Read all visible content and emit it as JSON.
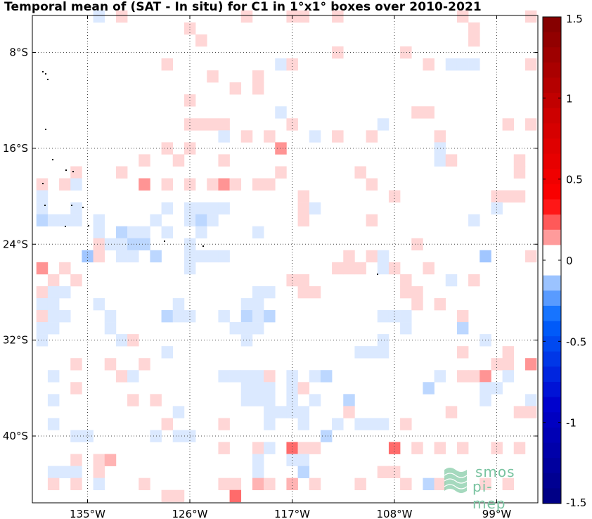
{
  "title": "Temporal mean of (SAT - In situ) for C1 in 1°x1° boxes over 2010-2021",
  "chart_data": {
    "type": "heatmap",
    "title": "Temporal mean of (SAT - In situ) for C1 in 1°x1° boxes over 2010-2021",
    "x_range": [
      -140,
      -95
    ],
    "y_range": [
      -46,
      -4
    ],
    "x_ticks": [
      {
        "value": -135,
        "label": "135°W"
      },
      {
        "value": -126,
        "label": "126°W"
      },
      {
        "value": -117,
        "label": "117°W"
      },
      {
        "value": -108,
        "label": "108°W"
      },
      {
        "value": -99,
        "label": "99°W"
      }
    ],
    "y_ticks": [
      {
        "value": -8,
        "label": "8°S"
      },
      {
        "value": -16,
        "label": "16°S"
      },
      {
        "value": -24,
        "label": "24°S"
      },
      {
        "value": -32,
        "label": "32°S"
      },
      {
        "value": -40,
        "label": "40°S"
      }
    ],
    "grid": true,
    "colorbar": {
      "range": [
        -1.5,
        1.5
      ],
      "levels": 32,
      "ticks": [
        {
          "value": 1.5,
          "label": "1.5"
        },
        {
          "value": 1,
          "label": "1"
        },
        {
          "value": 0.5,
          "label": "0.5"
        },
        {
          "value": 0,
          "label": "0"
        },
        {
          "value": -0.5,
          "label": "-0.5"
        },
        {
          "value": -1,
          "label": "-1"
        },
        {
          "value": -1.5,
          "label": "-1.5"
        }
      ],
      "colors_low_to_high": [
        "#000080",
        "#0000cc",
        "#0066ff",
        "#ffffff",
        "#ff0000",
        "#cc0000",
        "#800000"
      ]
    },
    "cells": [
      [
        -134,
        -5,
        -0.1
      ],
      [
        -132,
        -5,
        0.1
      ],
      [
        -121,
        -5,
        0.1
      ],
      [
        -113,
        -5,
        0.1
      ],
      [
        -116,
        -5,
        0.1
      ],
      [
        -102,
        -5,
        0.1
      ],
      [
        -96,
        -5,
        0.1
      ],
      [
        -117,
        -5,
        0.1
      ],
      [
        -126,
        -6,
        0.1
      ],
      [
        -101,
        -6,
        0.1
      ],
      [
        -125,
        -7,
        0.1
      ],
      [
        -101,
        -7,
        0.1
      ],
      [
        -107,
        -8,
        0.1
      ],
      [
        -113,
        -8,
        0.1
      ],
      [
        -128,
        -9,
        0.1
      ],
      [
        -118,
        -9,
        -0.1
      ],
      [
        -117,
        -9,
        0.1
      ],
      [
        -105,
        -9,
        0.1
      ],
      [
        -103,
        -9,
        -0.1
      ],
      [
        -102,
        -9,
        -0.1
      ],
      [
        -101,
        -9,
        -0.1
      ],
      [
        -96,
        -9,
        0.1
      ],
      [
        -124,
        -10,
        0.1
      ],
      [
        -120,
        -10,
        0.1
      ],
      [
        -122,
        -11,
        0.1
      ],
      [
        -120,
        -11,
        0.1
      ],
      [
        -126,
        -12,
        0.1
      ],
      [
        -118,
        -13,
        -0.1
      ],
      [
        -106,
        -13,
        0.1
      ],
      [
        -105,
        -13,
        0.1
      ],
      [
        -126,
        -14,
        0.1
      ],
      [
        -125,
        -14,
        0.1
      ],
      [
        -124,
        -14,
        0.1
      ],
      [
        -123,
        -14,
        0.1
      ],
      [
        -117,
        -14,
        0.1
      ],
      [
        -109,
        -14,
        -0.1
      ],
      [
        -98,
        -14,
        0.1
      ],
      [
        -96,
        -14,
        0.1
      ],
      [
        -123,
        -15,
        -0.1
      ],
      [
        -121,
        -15,
        0.1
      ],
      [
        -119,
        -15,
        0.1
      ],
      [
        -115,
        -15,
        -0.1
      ],
      [
        -113,
        -15,
        0.1
      ],
      [
        -110,
        -15,
        0.1
      ],
      [
        -104,
        -15,
        0.1
      ],
      [
        -128,
        -16,
        0.1
      ],
      [
        -126,
        -16,
        0.1
      ],
      [
        -118,
        -16,
        0.3
      ],
      [
        -104,
        -16,
        -0.1
      ],
      [
        -130,
        -17,
        0.1
      ],
      [
        -127,
        -17,
        0.1
      ],
      [
        -123,
        -17,
        0.1
      ],
      [
        -104,
        -17,
        -0.1
      ],
      [
        -103,
        -17,
        0.1
      ],
      [
        -97,
        -17,
        0.1
      ],
      [
        -136,
        -18,
        0.1
      ],
      [
        -132,
        -18,
        0.1
      ],
      [
        -118,
        -18,
        0.1
      ],
      [
        -111,
        -18,
        0.1
      ],
      [
        -97,
        -18,
        0.1
      ],
      [
        -139,
        -19,
        0.1
      ],
      [
        -137,
        -19,
        0.1
      ],
      [
        -136,
        -19,
        -0.1
      ],
      [
        -130,
        -19,
        0.3
      ],
      [
        -128,
        -19,
        0.1
      ],
      [
        -126,
        -19,
        0.1
      ],
      [
        -124,
        -19,
        0.1
      ],
      [
        -123,
        -19,
        0.3
      ],
      [
        -122,
        -19,
        0.1
      ],
      [
        -120,
        -19,
        0.1
      ],
      [
        -119,
        -19,
        0.1
      ],
      [
        -110,
        -19,
        0.1
      ],
      [
        -139,
        -20,
        -0.1
      ],
      [
        -116,
        -20,
        0.1
      ],
      [
        -108,
        -20,
        0.1
      ],
      [
        -99,
        -20,
        0.1
      ],
      [
        -98,
        -20,
        0.1
      ],
      [
        -97,
        -20,
        0.1
      ],
      [
        -139,
        -21,
        -0.1
      ],
      [
        -136,
        -21,
        -0.1
      ],
      [
        -128,
        -21,
        -0.1
      ],
      [
        -126,
        -21,
        -0.1
      ],
      [
        -125,
        -21,
        -0.1
      ],
      [
        -124,
        -21,
        -0.1
      ],
      [
        -123,
        -21,
        -0.1
      ],
      [
        -116,
        -21,
        0.1
      ],
      [
        -115,
        -21,
        -0.1
      ],
      [
        -99,
        -21,
        -0.1
      ],
      [
        -139,
        -22,
        -0.2
      ],
      [
        -138,
        -22,
        -0.1
      ],
      [
        -137,
        -22,
        -0.1
      ],
      [
        -136,
        -22,
        -0.1
      ],
      [
        -134,
        -22,
        -0.1
      ],
      [
        -129,
        -22,
        -0.1
      ],
      [
        -126,
        -22,
        -0.1
      ],
      [
        -125,
        -22,
        -0.2
      ],
      [
        -124,
        -22,
        -0.1
      ],
      [
        -116,
        -22,
        0.1
      ],
      [
        -110,
        -22,
        0.1
      ],
      [
        -101,
        -22,
        -0.1
      ],
      [
        -134,
        -23,
        -0.1
      ],
      [
        -132,
        -23,
        -0.2
      ],
      [
        -131,
        -23,
        -0.1
      ],
      [
        -130,
        -23,
        -0.1
      ],
      [
        -128,
        -23,
        -0.1
      ],
      [
        -125,
        -23,
        -0.1
      ],
      [
        -120,
        -23,
        -0.1
      ],
      [
        -134,
        -24,
        0.1
      ],
      [
        -133,
        -24,
        -0.1
      ],
      [
        -132,
        -24,
        -0.1
      ],
      [
        -131,
        -24,
        -0.2
      ],
      [
        -130,
        -24,
        -0.2
      ],
      [
        -126,
        -24,
        -0.1
      ],
      [
        -106,
        -24,
        0.1
      ],
      [
        -135,
        -25,
        -0.3
      ],
      [
        -134,
        -25,
        0.1
      ],
      [
        -132,
        -25,
        -0.1
      ],
      [
        -131,
        -25,
        -0.1
      ],
      [
        -129,
        -25,
        -0.2
      ],
      [
        -126,
        -25,
        -0.1
      ],
      [
        -125,
        -25,
        -0.1
      ],
      [
        -124,
        -25,
        -0.1
      ],
      [
        -123,
        -25,
        -0.1
      ],
      [
        -112,
        -25,
        0.1
      ],
      [
        -110,
        -25,
        0.1
      ],
      [
        -109,
        -25,
        -0.1
      ],
      [
        -100,
        -25,
        -0.3
      ],
      [
        -96,
        -25,
        0.1
      ],
      [
        -139,
        -26,
        0.3
      ],
      [
        -137,
        -26,
        0.1
      ],
      [
        -126,
        -26,
        -0.1
      ],
      [
        -113,
        -26,
        0.1
      ],
      [
        -112,
        -26,
        0.1
      ],
      [
        -111,
        -26,
        0.1
      ],
      [
        -109,
        -26,
        -0.1
      ],
      [
        -108,
        -26,
        0.1
      ],
      [
        -105,
        -26,
        0.1
      ],
      [
        -138,
        -27,
        0.1
      ],
      [
        -136,
        -27,
        0.1
      ],
      [
        -117,
        -27,
        0.1
      ],
      [
        -116,
        -27,
        0.1
      ],
      [
        -107,
        -27,
        0.1
      ],
      [
        -103,
        -27,
        -0.1
      ],
      [
        -101,
        -27,
        0.1
      ],
      [
        -139,
        -28,
        0.1
      ],
      [
        -138,
        -28,
        -0.1
      ],
      [
        -137,
        -28,
        -0.1
      ],
      [
        -120,
        -28,
        -0.1
      ],
      [
        -119,
        -28,
        -0.1
      ],
      [
        -116,
        -28,
        0.1
      ],
      [
        -115,
        -28,
        0.1
      ],
      [
        -107,
        -28,
        0.1
      ],
      [
        -106,
        -28,
        0.1
      ],
      [
        -139,
        -29,
        -0.1
      ],
      [
        -138,
        -29,
        -0.1
      ],
      [
        -134,
        -29,
        -0.1
      ],
      [
        -127,
        -29,
        -0.1
      ],
      [
        -121,
        -29,
        -0.1
      ],
      [
        -120,
        -29,
        -0.1
      ],
      [
        -106,
        -29,
        0.1
      ],
      [
        -104,
        -29,
        0.1
      ],
      [
        -139,
        -30,
        0.1
      ],
      [
        -138,
        -30,
        -0.1
      ],
      [
        -137,
        -30,
        -0.1
      ],
      [
        -133,
        -30,
        -0.1
      ],
      [
        -128,
        -30,
        -0.2
      ],
      [
        -127,
        -30,
        -0.1
      ],
      [
        -126,
        -30,
        -0.1
      ],
      [
        -123,
        -30,
        -0.1
      ],
      [
        -121,
        -30,
        -0.2
      ],
      [
        -120,
        -30,
        -0.1
      ],
      [
        -119,
        -30,
        -0.2
      ],
      [
        -109,
        -30,
        -0.1
      ],
      [
        -108,
        -30,
        -0.1
      ],
      [
        -107,
        -30,
        -0.1
      ],
      [
        -102,
        -30,
        0.1
      ],
      [
        -139,
        -31,
        -0.1
      ],
      [
        -138,
        -31,
        -0.1
      ],
      [
        -133,
        -31,
        -0.1
      ],
      [
        -122,
        -31,
        -0.1
      ],
      [
        -121,
        -31,
        -0.1
      ],
      [
        -120,
        -31,
        -0.1
      ],
      [
        -107,
        -31,
        -0.1
      ],
      [
        -102,
        -31,
        -0.2
      ],
      [
        -139,
        -32,
        -0.1
      ],
      [
        -132,
        -32,
        -0.1
      ],
      [
        -131,
        -32,
        0.1
      ],
      [
        -121,
        -32,
        -0.1
      ],
      [
        -109,
        -32,
        -0.1
      ],
      [
        -100,
        -32,
        -0.1
      ],
      [
        -128,
        -33,
        -0.1
      ],
      [
        -111,
        -33,
        -0.1
      ],
      [
        -110,
        -33,
        -0.1
      ],
      [
        -109,
        -33,
        -0.1
      ],
      [
        -102,
        -33,
        0.1
      ],
      [
        -98,
        -33,
        0.1
      ],
      [
        -136,
        -34,
        0.1
      ],
      [
        -133,
        -34,
        0.1
      ],
      [
        -130,
        -34,
        0.1
      ],
      [
        -99,
        -34,
        0.1
      ],
      [
        -98,
        -34,
        0.1
      ],
      [
        -96,
        -34,
        0.3
      ],
      [
        -138,
        -35,
        -0.1
      ],
      [
        -132,
        -35,
        0.1
      ],
      [
        -131,
        -35,
        -0.1
      ],
      [
        -123,
        -35,
        -0.1
      ],
      [
        -122,
        -35,
        -0.1
      ],
      [
        -121,
        -35,
        -0.1
      ],
      [
        -120,
        -35,
        -0.1
      ],
      [
        -119,
        -35,
        0.1
      ],
      [
        -117,
        -35,
        -0.1
      ],
      [
        -115,
        -35,
        -0.1
      ],
      [
        -114,
        -35,
        -0.2
      ],
      [
        -104,
        -35,
        -0.1
      ],
      [
        -102,
        -35,
        0.1
      ],
      [
        -101,
        -35,
        0.1
      ],
      [
        -100,
        -35,
        0.3
      ],
      [
        -98,
        -35,
        -0.1
      ],
      [
        -136,
        -36,
        0.1
      ],
      [
        -121,
        -36,
        -0.1
      ],
      [
        -120,
        -36,
        -0.1
      ],
      [
        -119,
        -36,
        -0.1
      ],
      [
        -117,
        -36,
        -0.1
      ],
      [
        -116,
        -36,
        0.1
      ],
      [
        -105,
        -36,
        -0.2
      ],
      [
        -100,
        -36,
        -0.1
      ],
      [
        -99,
        -36,
        -0.1
      ],
      [
        -138,
        -37,
        -0.1
      ],
      [
        -131,
        -37,
        0.1
      ],
      [
        -129,
        -37,
        0.1
      ],
      [
        -121,
        -37,
        -0.1
      ],
      [
        -120,
        -37,
        -0.1
      ],
      [
        -119,
        -37,
        -0.1
      ],
      [
        -117,
        -37,
        -0.1
      ],
      [
        -115,
        -37,
        -0.1
      ],
      [
        -112,
        -37,
        -0.2
      ],
      [
        -100,
        -37,
        -0.1
      ],
      [
        -96,
        -37,
        -0.1
      ],
      [
        -127,
        -38,
        -0.1
      ],
      [
        -119,
        -38,
        -0.1
      ],
      [
        -118,
        -38,
        -0.1
      ],
      [
        -117,
        -38,
        -0.1
      ],
      [
        -116,
        -38,
        -0.1
      ],
      [
        -112,
        -38,
        0.1
      ],
      [
        -103,
        -38,
        0.1
      ],
      [
        -97,
        -38,
        0.1
      ],
      [
        -96,
        -38,
        0.1
      ],
      [
        -138,
        -39,
        -0.1
      ],
      [
        -128,
        -39,
        0.1
      ],
      [
        -123,
        -39,
        0.1
      ],
      [
        -119,
        -39,
        -0.1
      ],
      [
        -116,
        -39,
        -0.1
      ],
      [
        -113,
        -39,
        -0.1
      ],
      [
        -111,
        -39,
        -0.1
      ],
      [
        -110,
        -39,
        -0.1
      ],
      [
        -109,
        -39,
        -0.1
      ],
      [
        -107,
        -39,
        0.1
      ],
      [
        -136,
        -40,
        -0.1
      ],
      [
        -135,
        -40,
        -0.1
      ],
      [
        -129,
        -40,
        -0.1
      ],
      [
        -127,
        -40,
        -0.1
      ],
      [
        -126,
        -40,
        -0.1
      ],
      [
        -114,
        -40,
        -0.2
      ],
      [
        -123,
        -41,
        0.1
      ],
      [
        -120,
        -41,
        0.1
      ],
      [
        -119,
        -41,
        -0.1
      ],
      [
        -117,
        -41,
        0.4
      ],
      [
        -116,
        -41,
        0.1
      ],
      [
        -115,
        -41,
        0.1
      ],
      [
        -108,
        -41,
        0.4
      ],
      [
        -106,
        -41,
        0.1
      ],
      [
        -104,
        -41,
        0.1
      ],
      [
        -102,
        -41,
        0.1
      ],
      [
        -99,
        -41,
        0.1
      ],
      [
        -97,
        -41,
        0.1
      ],
      [
        -136,
        -42,
        0.1
      ],
      [
        -134,
        -42,
        0.1
      ],
      [
        -133,
        -42,
        0.2
      ],
      [
        -120,
        -42,
        -0.1
      ],
      [
        -117,
        -42,
        -0.1
      ],
      [
        -116,
        -42,
        -0.1
      ],
      [
        -138,
        -43,
        -0.1
      ],
      [
        -137,
        -43,
        -0.1
      ],
      [
        -136,
        -43,
        -0.1
      ],
      [
        -134,
        -43,
        0.1
      ],
      [
        -120,
        -43,
        -0.1
      ],
      [
        -116,
        -43,
        -0.2
      ],
      [
        -109,
        -43,
        0.1
      ],
      [
        -108,
        -43,
        0.1
      ],
      [
        -138,
        -44,
        0.1
      ],
      [
        -136,
        -44,
        0.1
      ],
      [
        -134,
        -44,
        -0.1
      ],
      [
        -130,
        -44,
        0.1
      ],
      [
        -123,
        -44,
        0.1
      ],
      [
        -122,
        -44,
        0.1
      ],
      [
        -120,
        -44,
        0.2
      ],
      [
        -119,
        -44,
        0.1
      ],
      [
        -117,
        -44,
        0.2
      ],
      [
        -115,
        -44,
        0.1
      ],
      [
        -111,
        -44,
        0.1
      ],
      [
        -107,
        -44,
        0.1
      ],
      [
        -105,
        -44,
        -0.2
      ],
      [
        -104,
        -44,
        0.1
      ],
      [
        -100,
        -44,
        0.1
      ],
      [
        -98,
        -44,
        0.1
      ],
      [
        -128,
        -45,
        0.1
      ],
      [
        -127,
        -45,
        0.1
      ],
      [
        -122,
        -45,
        0.4
      ]
    ]
  },
  "logo": {
    "line1": "smos",
    "line2": "pi-mep"
  }
}
